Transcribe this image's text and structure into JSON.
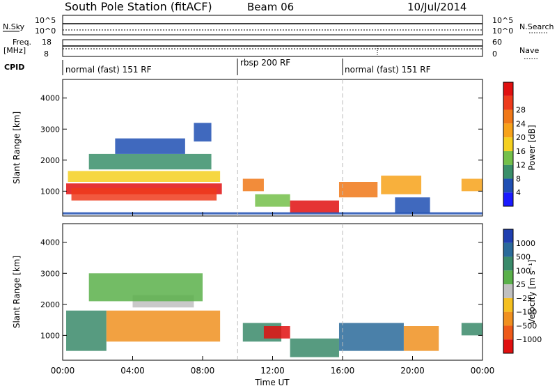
{
  "header": {
    "station": "South Pole Station (fitACF)",
    "beam": "Beam 06",
    "date": "10/Jul/2014"
  },
  "top_panels": {
    "nsky_label": "N.Sky",
    "nsearch_label": "N.Search",
    "nsky_ticks": [
      "10^5",
      "10^0"
    ],
    "freq_label_1": "Freq.",
    "freq_label_2": "[MHz]",
    "freq_ticks": [
      "18",
      "8"
    ],
    "nave_label": "Nave",
    "nave_ticks": [
      "60",
      "0"
    ],
    "cpid_label": "CPID",
    "cpid_segments": [
      {
        "label": "normal (fast) 151 RF",
        "start_h": 0,
        "end_h": 10
      },
      {
        "label": "rbsp 200 RF",
        "start_h": 10,
        "end_h": 16
      },
      {
        "label": "normal (fast) 151 RF",
        "start_h": 16,
        "end_h": 24
      }
    ]
  },
  "chart_data": [
    {
      "type": "heatmap",
      "title": "Power",
      "ylabel": "Slant Range [km]",
      "xlabel": "",
      "x_range_h": [
        0,
        24
      ],
      "ylim": [
        200,
        4600
      ],
      "y_ticks": [
        1000,
        2000,
        3000,
        4000
      ],
      "colorbar": {
        "label": "Power [dB]",
        "ticks": [
          "4",
          "8",
          "12",
          "16",
          "20",
          "24",
          "28"
        ],
        "colors": [
          "#1a1aff",
          "#1f4fb3",
          "#3a8f6a",
          "#74c04a",
          "#f5d020",
          "#f7a21a",
          "#f07818",
          "#ee3b1c",
          "#e01010"
        ]
      }
    },
    {
      "type": "heatmap",
      "title": "Velocity",
      "ylabel": "Slant Range [km]",
      "xlabel": "Time UT",
      "x_range_h": [
        0,
        24
      ],
      "x_ticks": [
        "00:00",
        "04:00",
        "08:00",
        "12:00",
        "16:00",
        "20:00",
        "00:00"
      ],
      "ylim": [
        200,
        4600
      ],
      "y_ticks": [
        1000,
        2000,
        3000,
        4000
      ],
      "colorbar": {
        "label": "Velocity [m s⁻¹]",
        "ticks": [
          "1000",
          "500",
          "100",
          "25",
          "−25",
          "−100",
          "−500",
          "−1000"
        ],
        "colors": [
          "#1f3fb0",
          "#2a6a9a",
          "#3a8a6a",
          "#5ab04a",
          "#c0c0c0",
          "#f5c020",
          "#f09020",
          "#ee5a1a",
          "#e01010"
        ]
      }
    }
  ]
}
